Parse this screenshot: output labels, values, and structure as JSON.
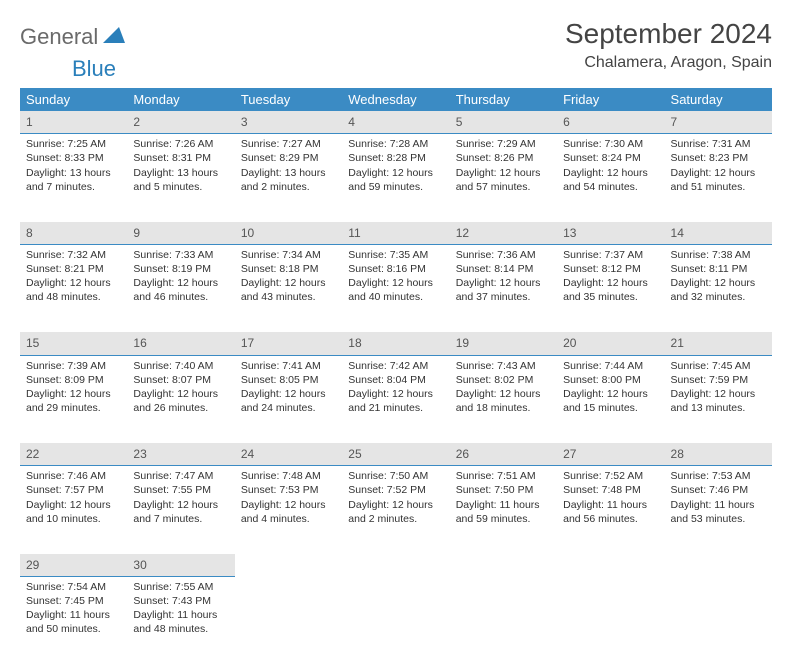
{
  "logo": {
    "text1": "General",
    "text2": "Blue"
  },
  "title": "September 2024",
  "location": "Chalamera, Aragon, Spain",
  "day_headers": [
    "Sunday",
    "Monday",
    "Tuesday",
    "Wednesday",
    "Thursday",
    "Friday",
    "Saturday"
  ],
  "colors": {
    "header_bg": "#3b8bc4",
    "header_text": "#ffffff",
    "daynum_bg": "#e5e5e5",
    "daynum_border": "#3b8bc4",
    "body_text": "#333333",
    "title_text": "#444444",
    "logo_gray": "#6a6a6a",
    "logo_blue": "#2a7fba"
  },
  "weeks": [
    [
      {
        "n": "1",
        "sr": "Sunrise: 7:25 AM",
        "ss": "Sunset: 8:33 PM",
        "dl1": "Daylight: 13 hours",
        "dl2": "and 7 minutes."
      },
      {
        "n": "2",
        "sr": "Sunrise: 7:26 AM",
        "ss": "Sunset: 8:31 PM",
        "dl1": "Daylight: 13 hours",
        "dl2": "and 5 minutes."
      },
      {
        "n": "3",
        "sr": "Sunrise: 7:27 AM",
        "ss": "Sunset: 8:29 PM",
        "dl1": "Daylight: 13 hours",
        "dl2": "and 2 minutes."
      },
      {
        "n": "4",
        "sr": "Sunrise: 7:28 AM",
        "ss": "Sunset: 8:28 PM",
        "dl1": "Daylight: 12 hours",
        "dl2": "and 59 minutes."
      },
      {
        "n": "5",
        "sr": "Sunrise: 7:29 AM",
        "ss": "Sunset: 8:26 PM",
        "dl1": "Daylight: 12 hours",
        "dl2": "and 57 minutes."
      },
      {
        "n": "6",
        "sr": "Sunrise: 7:30 AM",
        "ss": "Sunset: 8:24 PM",
        "dl1": "Daylight: 12 hours",
        "dl2": "and 54 minutes."
      },
      {
        "n": "7",
        "sr": "Sunrise: 7:31 AM",
        "ss": "Sunset: 8:23 PM",
        "dl1": "Daylight: 12 hours",
        "dl2": "and 51 minutes."
      }
    ],
    [
      {
        "n": "8",
        "sr": "Sunrise: 7:32 AM",
        "ss": "Sunset: 8:21 PM",
        "dl1": "Daylight: 12 hours",
        "dl2": "and 48 minutes."
      },
      {
        "n": "9",
        "sr": "Sunrise: 7:33 AM",
        "ss": "Sunset: 8:19 PM",
        "dl1": "Daylight: 12 hours",
        "dl2": "and 46 minutes."
      },
      {
        "n": "10",
        "sr": "Sunrise: 7:34 AM",
        "ss": "Sunset: 8:18 PM",
        "dl1": "Daylight: 12 hours",
        "dl2": "and 43 minutes."
      },
      {
        "n": "11",
        "sr": "Sunrise: 7:35 AM",
        "ss": "Sunset: 8:16 PM",
        "dl1": "Daylight: 12 hours",
        "dl2": "and 40 minutes."
      },
      {
        "n": "12",
        "sr": "Sunrise: 7:36 AM",
        "ss": "Sunset: 8:14 PM",
        "dl1": "Daylight: 12 hours",
        "dl2": "and 37 minutes."
      },
      {
        "n": "13",
        "sr": "Sunrise: 7:37 AM",
        "ss": "Sunset: 8:12 PM",
        "dl1": "Daylight: 12 hours",
        "dl2": "and 35 minutes."
      },
      {
        "n": "14",
        "sr": "Sunrise: 7:38 AM",
        "ss": "Sunset: 8:11 PM",
        "dl1": "Daylight: 12 hours",
        "dl2": "and 32 minutes."
      }
    ],
    [
      {
        "n": "15",
        "sr": "Sunrise: 7:39 AM",
        "ss": "Sunset: 8:09 PM",
        "dl1": "Daylight: 12 hours",
        "dl2": "and 29 minutes."
      },
      {
        "n": "16",
        "sr": "Sunrise: 7:40 AM",
        "ss": "Sunset: 8:07 PM",
        "dl1": "Daylight: 12 hours",
        "dl2": "and 26 minutes."
      },
      {
        "n": "17",
        "sr": "Sunrise: 7:41 AM",
        "ss": "Sunset: 8:05 PM",
        "dl1": "Daylight: 12 hours",
        "dl2": "and 24 minutes."
      },
      {
        "n": "18",
        "sr": "Sunrise: 7:42 AM",
        "ss": "Sunset: 8:04 PM",
        "dl1": "Daylight: 12 hours",
        "dl2": "and 21 minutes."
      },
      {
        "n": "19",
        "sr": "Sunrise: 7:43 AM",
        "ss": "Sunset: 8:02 PM",
        "dl1": "Daylight: 12 hours",
        "dl2": "and 18 minutes."
      },
      {
        "n": "20",
        "sr": "Sunrise: 7:44 AM",
        "ss": "Sunset: 8:00 PM",
        "dl1": "Daylight: 12 hours",
        "dl2": "and 15 minutes."
      },
      {
        "n": "21",
        "sr": "Sunrise: 7:45 AM",
        "ss": "Sunset: 7:59 PM",
        "dl1": "Daylight: 12 hours",
        "dl2": "and 13 minutes."
      }
    ],
    [
      {
        "n": "22",
        "sr": "Sunrise: 7:46 AM",
        "ss": "Sunset: 7:57 PM",
        "dl1": "Daylight: 12 hours",
        "dl2": "and 10 minutes."
      },
      {
        "n": "23",
        "sr": "Sunrise: 7:47 AM",
        "ss": "Sunset: 7:55 PM",
        "dl1": "Daylight: 12 hours",
        "dl2": "and 7 minutes."
      },
      {
        "n": "24",
        "sr": "Sunrise: 7:48 AM",
        "ss": "Sunset: 7:53 PM",
        "dl1": "Daylight: 12 hours",
        "dl2": "and 4 minutes."
      },
      {
        "n": "25",
        "sr": "Sunrise: 7:50 AM",
        "ss": "Sunset: 7:52 PM",
        "dl1": "Daylight: 12 hours",
        "dl2": "and 2 minutes."
      },
      {
        "n": "26",
        "sr": "Sunrise: 7:51 AM",
        "ss": "Sunset: 7:50 PM",
        "dl1": "Daylight: 11 hours",
        "dl2": "and 59 minutes."
      },
      {
        "n": "27",
        "sr": "Sunrise: 7:52 AM",
        "ss": "Sunset: 7:48 PM",
        "dl1": "Daylight: 11 hours",
        "dl2": "and 56 minutes."
      },
      {
        "n": "28",
        "sr": "Sunrise: 7:53 AM",
        "ss": "Sunset: 7:46 PM",
        "dl1": "Daylight: 11 hours",
        "dl2": "and 53 minutes."
      }
    ],
    [
      {
        "n": "29",
        "sr": "Sunrise: 7:54 AM",
        "ss": "Sunset: 7:45 PM",
        "dl1": "Daylight: 11 hours",
        "dl2": "and 50 minutes."
      },
      {
        "n": "30",
        "sr": "Sunrise: 7:55 AM",
        "ss": "Sunset: 7:43 PM",
        "dl1": "Daylight: 11 hours",
        "dl2": "and 48 minutes."
      },
      null,
      null,
      null,
      null,
      null
    ]
  ]
}
